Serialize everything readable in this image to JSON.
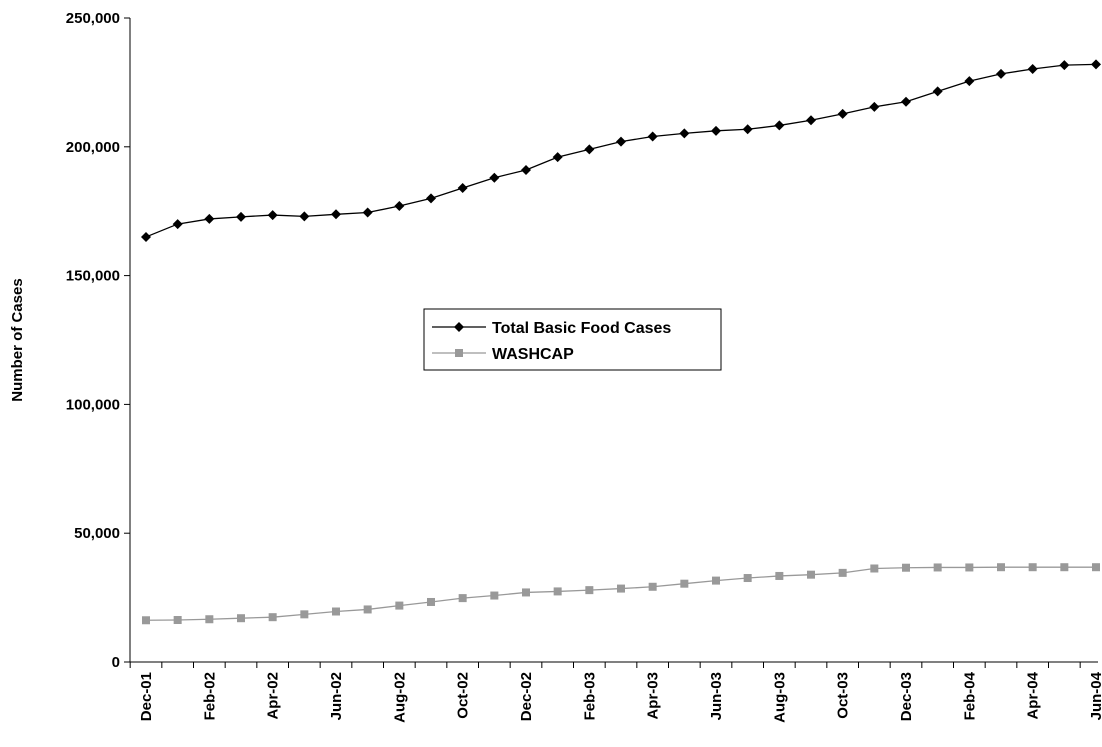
{
  "chart_data": {
    "type": "line",
    "title": "",
    "xlabel": "",
    "ylabel": "Number of Cases",
    "ylim": [
      0,
      250000
    ],
    "yticks": [
      "0",
      "50,000",
      "100,000",
      "150,000",
      "200,000",
      "250,000"
    ],
    "x": [
      "Dec-01",
      "Jan-02",
      "Feb-02",
      "Mar-02",
      "Apr-02",
      "May-02",
      "Jun-02",
      "Jul-02",
      "Aug-02",
      "Sep-02",
      "Oct-02",
      "Nov-02",
      "Dec-02",
      "Jan-03",
      "Feb-03",
      "Mar-03",
      "Apr-03",
      "May-03",
      "Jun-03",
      "Jul-03",
      "Aug-03",
      "Sep-03",
      "Oct-03",
      "Nov-03",
      "Dec-03",
      "Jan-04",
      "Feb-04",
      "Mar-04",
      "Apr-04",
      "May-04",
      "Jun-04"
    ],
    "xtick_labels": [
      "Dec-01",
      "Feb-02",
      "Apr-02",
      "Jun-02",
      "Aug-02",
      "Oct-02",
      "Dec-02",
      "Feb-03",
      "Apr-03",
      "Jun-03",
      "Aug-03",
      "Oct-03",
      "Dec-03",
      "Feb-04",
      "Apr-04",
      "Jun-04"
    ],
    "grid": false,
    "legend_position": "center",
    "series": [
      {
        "name": "Total Basic Food Cases",
        "color": "#000000",
        "marker": "diamond",
        "values": [
          165000,
          170000,
          172000,
          172800,
          173500,
          173000,
          173800,
          174500,
          177000,
          180000,
          184000,
          188000,
          191000,
          196000,
          199000,
          202000,
          204000,
          205200,
          206200,
          206800,
          208300,
          210300,
          212800,
          215500,
          217500,
          221500,
          225500,
          228300,
          230200,
          231700,
          232000
        ]
      },
      {
        "name": "WASHCAP",
        "color": "#999999",
        "marker": "square",
        "values": [
          16200,
          16300,
          16600,
          17000,
          17400,
          18500,
          19600,
          20400,
          21900,
          23300,
          24800,
          25800,
          27000,
          27400,
          27900,
          28500,
          29200,
          30400,
          31600,
          32600,
          33400,
          33900,
          34600,
          36300,
          36600,
          36700,
          36700,
          36800,
          36800,
          36800,
          36800
        ]
      }
    ]
  }
}
